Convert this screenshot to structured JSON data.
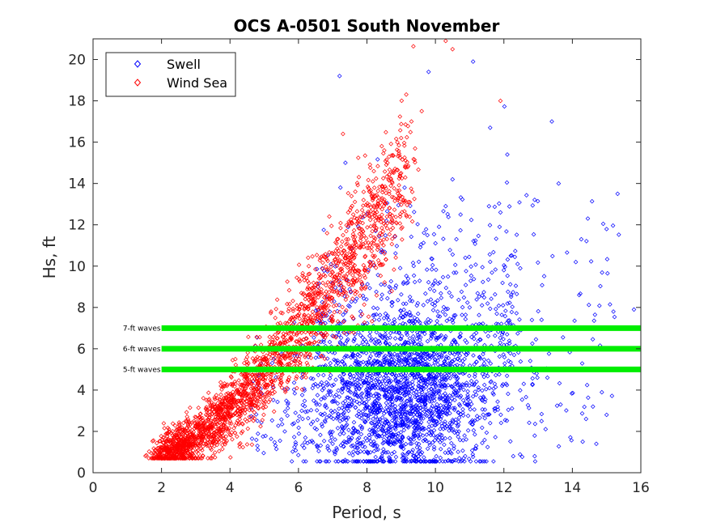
{
  "chart_data": {
    "type": "scatter",
    "title": "OCS A-0501 South November",
    "xlabel": "Period, s",
    "ylabel": "Hs, ft",
    "xlim": [
      0,
      16
    ],
    "ylim": [
      0,
      21
    ],
    "xticks": [
      0,
      2,
      4,
      6,
      8,
      10,
      12,
      14,
      16
    ],
    "yticks": [
      0,
      2,
      4,
      6,
      8,
      10,
      12,
      14,
      16,
      18,
      20
    ],
    "grid": false,
    "legend_position": "top-left",
    "marker": "diamond",
    "series": [
      {
        "name": "Swell",
        "color": "#0000ff",
        "approx_point_count": 2600,
        "sample_points": [
          [
            7.2,
            19.2
          ],
          [
            9.8,
            19.4
          ],
          [
            11.1,
            19.9
          ],
          [
            13.4,
            17.0
          ],
          [
            11.6,
            16.7
          ],
          [
            12.1,
            15.4
          ],
          [
            10.5,
            14.2
          ],
          [
            13.6,
            14.0
          ],
          [
            9.1,
            13.8
          ],
          [
            11.9,
            12.6
          ],
          [
            10.3,
            12.9
          ],
          [
            14.1,
            10.2
          ],
          [
            12.2,
            10.5
          ],
          [
            14.2,
            8.6
          ],
          [
            15.2,
            7.8
          ],
          [
            15.8,
            7.9
          ],
          [
            13.1,
            7.4
          ],
          [
            14.6,
            3.2
          ],
          [
            15.0,
            2.8
          ],
          [
            14.4,
            2.6
          ],
          [
            14.3,
            1.5
          ],
          [
            14.7,
            1.4
          ],
          [
            13.1,
            2.5
          ],
          [
            12.9,
            0.8
          ],
          [
            10.7,
            0.7
          ],
          [
            10.6,
            0.6
          ],
          [
            9.5,
            0.8
          ],
          [
            8.8,
            1.0
          ],
          [
            4.8,
            1.3
          ],
          [
            5.6,
            2.0
          ],
          [
            9.0,
            3.5
          ],
          [
            9.5,
            4.2
          ],
          [
            10.2,
            5.0
          ],
          [
            8.6,
            6.5
          ],
          [
            11.0,
            8.0
          ],
          [
            12.5,
            6.0
          ]
        ]
      },
      {
        "name": "Wind Sea",
        "color": "#ff0000",
        "approx_point_count": 2300,
        "sample_points": [
          [
            2.1,
            1.1
          ],
          [
            2.5,
            1.6
          ],
          [
            2.7,
            1.3
          ],
          [
            3.0,
            2.2
          ],
          [
            3.3,
            2.8
          ],
          [
            3.6,
            3.1
          ],
          [
            3.9,
            3.6
          ],
          [
            4.2,
            4.0
          ],
          [
            4.5,
            4.8
          ],
          [
            4.8,
            5.6
          ],
          [
            5.1,
            6.0
          ],
          [
            5.4,
            6.8
          ],
          [
            5.8,
            7.5
          ],
          [
            6.2,
            8.4
          ],
          [
            6.6,
            9.4
          ],
          [
            7.0,
            10.6
          ],
          [
            7.3,
            11.5
          ],
          [
            7.6,
            12.5
          ],
          [
            7.9,
            13.2
          ],
          [
            8.2,
            14.6
          ],
          [
            8.6,
            15.0
          ],
          [
            9.0,
            16.2
          ],
          [
            9.3,
            17.0
          ],
          [
            9.6,
            17.5
          ],
          [
            10.3,
            20.9
          ],
          [
            10.5,
            20.5
          ],
          [
            11.9,
            18.0
          ],
          [
            7.3,
            16.4
          ],
          [
            6.9,
            12.4
          ],
          [
            6.3,
            10.0
          ],
          [
            5.2,
            7.8
          ],
          [
            4.5,
            5.6
          ],
          [
            3.8,
            4.2
          ],
          [
            4.0,
            2.5
          ],
          [
            6.6,
            5.0
          ],
          [
            7.5,
            6.8
          ]
        ]
      }
    ],
    "reference_lines": [
      {
        "y": 7,
        "x_from": 2,
        "x_to": 16,
        "label": "7-ft waves",
        "color": "#00ee00"
      },
      {
        "y": 6,
        "x_from": 2,
        "x_to": 16,
        "label": "6-ft waves",
        "color": "#00ee00"
      },
      {
        "y": 5,
        "x_from": 2,
        "x_to": 16,
        "label": "5-ft waves",
        "color": "#00ee00"
      }
    ]
  }
}
